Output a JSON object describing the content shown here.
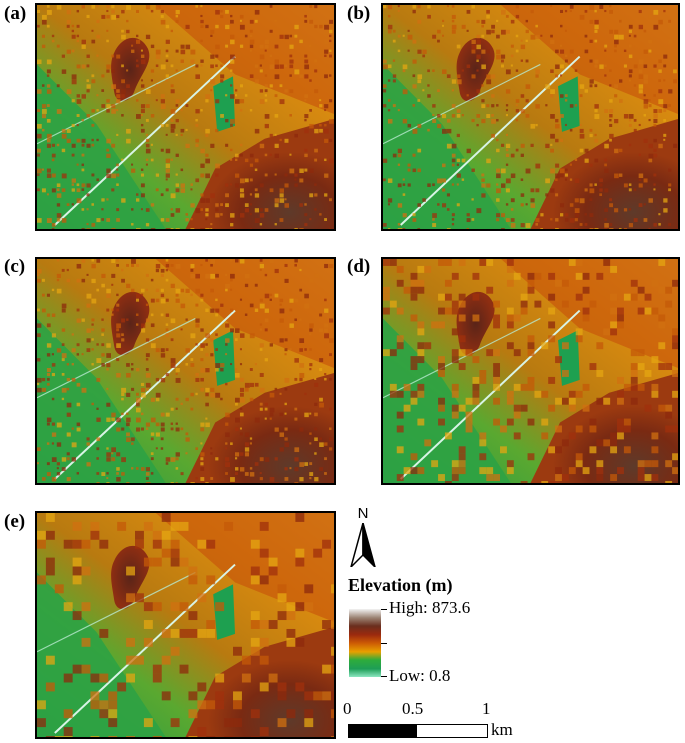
{
  "panels": [
    {
      "label": "(a)",
      "blockiness": 0
    },
    {
      "label": "(b)",
      "blockiness": 0
    },
    {
      "label": "(c)",
      "blockiness": 0
    },
    {
      "label": "(d)",
      "blockiness": 1
    },
    {
      "label": "(e)",
      "blockiness": 2
    }
  ],
  "north_arrow": {
    "label": "N"
  },
  "legend": {
    "title": "Elevation (m)",
    "high_label": "High: 873.6",
    "low_label": "Low: 0.8",
    "colors": [
      "#f2f2f2",
      "#9b8272",
      "#6a2e1e",
      "#9c2a0e",
      "#cc5a05",
      "#e8a000",
      "#2eac3c",
      "#1e9e56",
      "#8ce6c0"
    ]
  },
  "scale_bar": {
    "ticks": [
      "0",
      "0.5",
      "1"
    ],
    "unit": "km"
  }
}
